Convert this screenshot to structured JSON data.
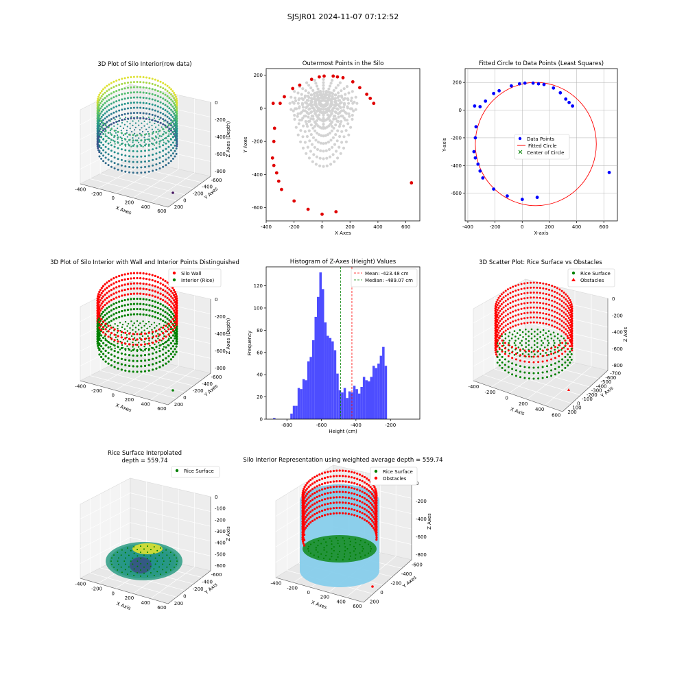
{
  "suptitle": "SJSJR01 2024-11-07 07:12:52",
  "chart_data": [
    {
      "id": "p1",
      "type": "scatter3d",
      "title": "3D Plot of Silo Interior(row data)",
      "xlabel": "X Axes",
      "ylabel": "Y Axes",
      "zlabel": "Z Axes (Depth)",
      "xticks": [
        -400,
        -200,
        0,
        200,
        400,
        600
      ],
      "yticks": [
        200,
        0,
        -200,
        -400,
        -600
      ],
      "zticks": [
        0,
        -200,
        -400,
        -600,
        -800
      ],
      "colormap": "viridis"
    },
    {
      "id": "p2",
      "type": "scatter",
      "title": "Outermost Points in the Silo",
      "xlabel": "X Axes",
      "ylabel": "Y Axes",
      "xlim": [
        -400,
        700
      ],
      "ylim": [
        -680,
        240
      ],
      "xticks": [
        -400,
        -200,
        0,
        200,
        400,
        600
      ],
      "yticks": [
        -600,
        -400,
        -200,
        0,
        200
      ],
      "colors": {
        "all": "#d3d3d3",
        "outer": "#e00000"
      },
      "outer_points": [
        [
          -350,
          30
        ],
        [
          -340,
          -120
        ],
        [
          -345,
          -200
        ],
        [
          -355,
          -300
        ],
        [
          -345,
          -345
        ],
        [
          -325,
          -390
        ],
        [
          -310,
          -440
        ],
        [
          -290,
          -490
        ],
        [
          -200,
          -560
        ],
        [
          -100,
          -610
        ],
        [
          0,
          -640
        ],
        [
          100,
          -625
        ],
        [
          -300,
          30
        ],
        [
          -270,
          70
        ],
        [
          -210,
          120
        ],
        [
          -160,
          140
        ],
        [
          -75,
          175
        ],
        [
          -20,
          190
        ],
        [
          15,
          195
        ],
        [
          80,
          195
        ],
        [
          110,
          190
        ],
        [
          150,
          185
        ],
        [
          220,
          160
        ],
        [
          270,
          125
        ],
        [
          320,
          85
        ],
        [
          345,
          60
        ],
        [
          370,
          30
        ],
        [
          640,
          -450
        ]
      ]
    },
    {
      "id": "p3",
      "type": "scatter",
      "title": "Fitted Circle to Data Points (Least Squares)",
      "xlabel": "X-axis",
      "ylabel": "Y-axis",
      "xlim": [
        -420,
        700
      ],
      "ylim": [
        -800,
        300
      ],
      "xticks": [
        -400,
        -200,
        0,
        200,
        400,
        600
      ],
      "yticks": [
        -600,
        -400,
        -200,
        0,
        200
      ],
      "grid": true,
      "legend": [
        "Data Points",
        "Fitted Circle",
        "Center of Circle"
      ],
      "legend_position": "center",
      "circle": {
        "cx": 100,
        "cy": -245,
        "r": 445
      },
      "points": [
        [
          -350,
          30
        ],
        [
          -340,
          -120
        ],
        [
          -345,
          -200
        ],
        [
          -355,
          -300
        ],
        [
          -345,
          -345
        ],
        [
          -325,
          -390
        ],
        [
          -310,
          -440
        ],
        [
          -290,
          -490
        ],
        [
          -210,
          -570
        ],
        [
          -110,
          -620
        ],
        [
          0,
          -645
        ],
        [
          110,
          -630
        ],
        [
          -310,
          25
        ],
        [
          -270,
          65
        ],
        [
          -210,
          120
        ],
        [
          -170,
          140
        ],
        [
          -80,
          175
        ],
        [
          -20,
          190
        ],
        [
          20,
          195
        ],
        [
          80,
          195
        ],
        [
          120,
          190
        ],
        [
          160,
          185
        ],
        [
          230,
          160
        ],
        [
          280,
          125
        ],
        [
          320,
          80
        ],
        [
          345,
          55
        ],
        [
          370,
          30
        ],
        [
          640,
          -450
        ]
      ],
      "colors": {
        "points": "#0000ff",
        "circle": "#ff0000",
        "center": "#008000"
      }
    },
    {
      "id": "p4",
      "type": "scatter3d",
      "title": "3D Plot of Silo Interior with Wall and Interior Points Distinguished",
      "xlabel": "X Axes",
      "ylabel": "Y Axes",
      "zlabel": "Z Axes (Depth)",
      "xticks": [
        -400,
        -200,
        0,
        200,
        400,
        600
      ],
      "yticks": [
        200,
        0,
        -200,
        -400,
        -600
      ],
      "zticks": [
        0,
        -200,
        -400,
        -600,
        -800
      ],
      "legend": [
        "Silo Wall",
        "Interior (Rice)"
      ],
      "colors": {
        "wall": "#ff0000",
        "interior": "#008000"
      }
    },
    {
      "id": "p5",
      "type": "bar",
      "title": "Histogram of Z-Axes (Height) Values",
      "xlabel": "Height (cm)",
      "ylabel": "Frequency",
      "xlim": [
        -920,
        -30
      ],
      "ylim": [
        0,
        137
      ],
      "xticks": [
        -800,
        -600,
        -400,
        -200
      ],
      "yticks": [
        0,
        20,
        40,
        60,
        80,
        100,
        120
      ],
      "bin_start": -780,
      "bin_width": 14,
      "values": [
        5,
        12,
        12,
        28,
        27,
        36,
        35,
        52,
        56,
        71,
        92,
        110,
        132,
        117,
        87,
        75,
        73,
        70,
        62,
        41,
        26,
        24,
        28,
        19,
        25,
        24,
        30,
        27,
        23,
        29,
        38,
        35,
        34,
        38,
        48,
        46,
        50,
        57,
        65,
        48
      ],
      "extra_bars": [
        {
          "x": -880,
          "value": 1
        }
      ],
      "mean": -423.48,
      "median": -489.07,
      "legend": [
        "Mean: -423.48 cm",
        "Median: -489.07 cm"
      ],
      "colors": {
        "bars": "#4d4dff",
        "mean": "#ff0000",
        "median": "#008000"
      }
    },
    {
      "id": "p6",
      "type": "scatter3d",
      "title": "3D Scatter Plot: Rice Surface vs Obstacles",
      "xlabel": "X Axis",
      "ylabel": "Y Axis",
      "zlabel": "Z Axis",
      "xticks": [
        -400,
        -200,
        0,
        200,
        400,
        600
      ],
      "yticks": [
        200,
        100,
        0,
        -100,
        -200,
        -300,
        -400,
        -500,
        -600,
        -700
      ],
      "zticks": [
        0,
        -200,
        -400,
        -600,
        -800
      ],
      "legend": [
        "Rice Surface",
        "Obstacles"
      ],
      "colors": {
        "rice": "#008000",
        "obstacles": "#ff0000"
      }
    },
    {
      "id": "p7",
      "type": "surface3d",
      "title": "Rice Surface Interpolated",
      "subtitle": "depth = 559.74",
      "xlabel": "X Axis",
      "ylabel": "Y Axis",
      "zlabel": "Z Axis",
      "xticks": [
        -400,
        -200,
        0,
        200,
        400,
        600
      ],
      "yticks": [
        200,
        0,
        -200,
        -400,
        -600
      ],
      "zticks": [
        0,
        -100,
        -200,
        -300,
        -400,
        -500,
        -600
      ],
      "legend": [
        "Rice Surface"
      ],
      "colors": {
        "rice": "#008000"
      }
    },
    {
      "id": "p8",
      "type": "scatter3d",
      "title": "Silo Interior Representation using weighted average depth = 559.74",
      "xlabel": "X Axes",
      "ylabel": "Y Axes",
      "zlabel": "Z Axes",
      "xticks": [
        -400,
        -200,
        0,
        200,
        400,
        600
      ],
      "yticks": [
        200,
        0,
        -200,
        -400,
        -600
      ],
      "zticks": [
        0,
        -200,
        -400,
        -600,
        -800
      ],
      "legend": [
        "Rice Surface",
        "Obstacles"
      ],
      "colors": {
        "rice": "#008000",
        "obstacles": "#ff0000",
        "cylinder": "#87ceeb"
      }
    }
  ]
}
